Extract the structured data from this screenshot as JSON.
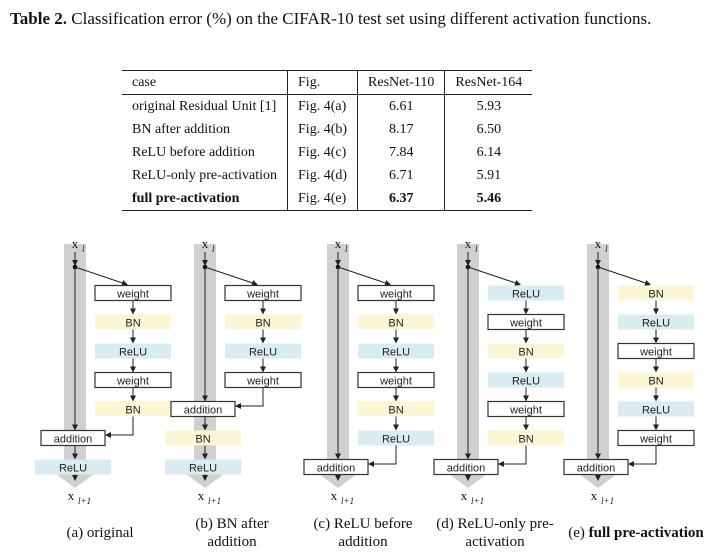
{
  "caption": {
    "label": "Table 2.",
    "text": "Classification error (%) on the CIFAR-10 test set using different activation functions."
  },
  "table": {
    "headers": [
      "case",
      "Fig.",
      "ResNet-110",
      "ResNet-164"
    ],
    "rows": [
      [
        "original Residual Unit [1]",
        "Fig. 4(a)",
        "6.61",
        "5.93"
      ],
      [
        "BN after addition",
        "Fig. 4(b)",
        "8.17",
        "6.50"
      ],
      [
        "ReLU before addition",
        "Fig. 4(c)",
        "7.84",
        "6.14"
      ],
      [
        "ReLU-only pre-activation",
        "Fig. 4(d)",
        "6.71",
        "5.91"
      ],
      [
        "full pre-activation",
        "Fig. 4(e)",
        "6.37",
        "5.46"
      ]
    ]
  },
  "diagram": {
    "input_label": "x",
    "input_sub": "l",
    "output_label": "x",
    "output_sub": "l+1",
    "colors": {
      "bn": "#fdf6d6",
      "relu": "#d9ecf2",
      "shortcut": "#d0d0d0",
      "weight": "#ffffff"
    },
    "units": [
      {
        "name": "original",
        "branch": [
          "weight",
          "BN",
          "ReLU",
          "weight",
          "BN"
        ],
        "addition": "addition",
        "after": [
          "ReLU"
        ],
        "caption_prefix": "(a) original",
        "caption_bold": ""
      },
      {
        "name": "bn-after-addition",
        "branch": [
          "weight",
          "BN",
          "ReLU",
          "weight"
        ],
        "addition": "addition",
        "after": [
          "BN",
          "ReLU"
        ],
        "caption_prefix": "(b) BN after addition",
        "caption_bold": ""
      },
      {
        "name": "relu-before-addition",
        "branch": [
          "weight",
          "BN",
          "ReLU",
          "weight",
          "BN",
          "ReLU"
        ],
        "addition": "addition",
        "after": [],
        "caption_prefix": "(c) ReLU before addition",
        "caption_bold": ""
      },
      {
        "name": "relu-only-pre-activation",
        "branch": [
          "ReLU",
          "weight",
          "BN",
          "ReLU",
          "weight",
          "BN"
        ],
        "addition": "addition",
        "after": [],
        "caption_prefix": "(d) ReLU-only pre-activation",
        "caption_bold": ""
      },
      {
        "name": "full-pre-activation",
        "branch": [
          "BN",
          "ReLU",
          "weight",
          "BN",
          "ReLU",
          "weight"
        ],
        "addition": "addition",
        "after": [],
        "caption_prefix": "(e) ",
        "caption_bold": "full pre-activation"
      }
    ]
  }
}
